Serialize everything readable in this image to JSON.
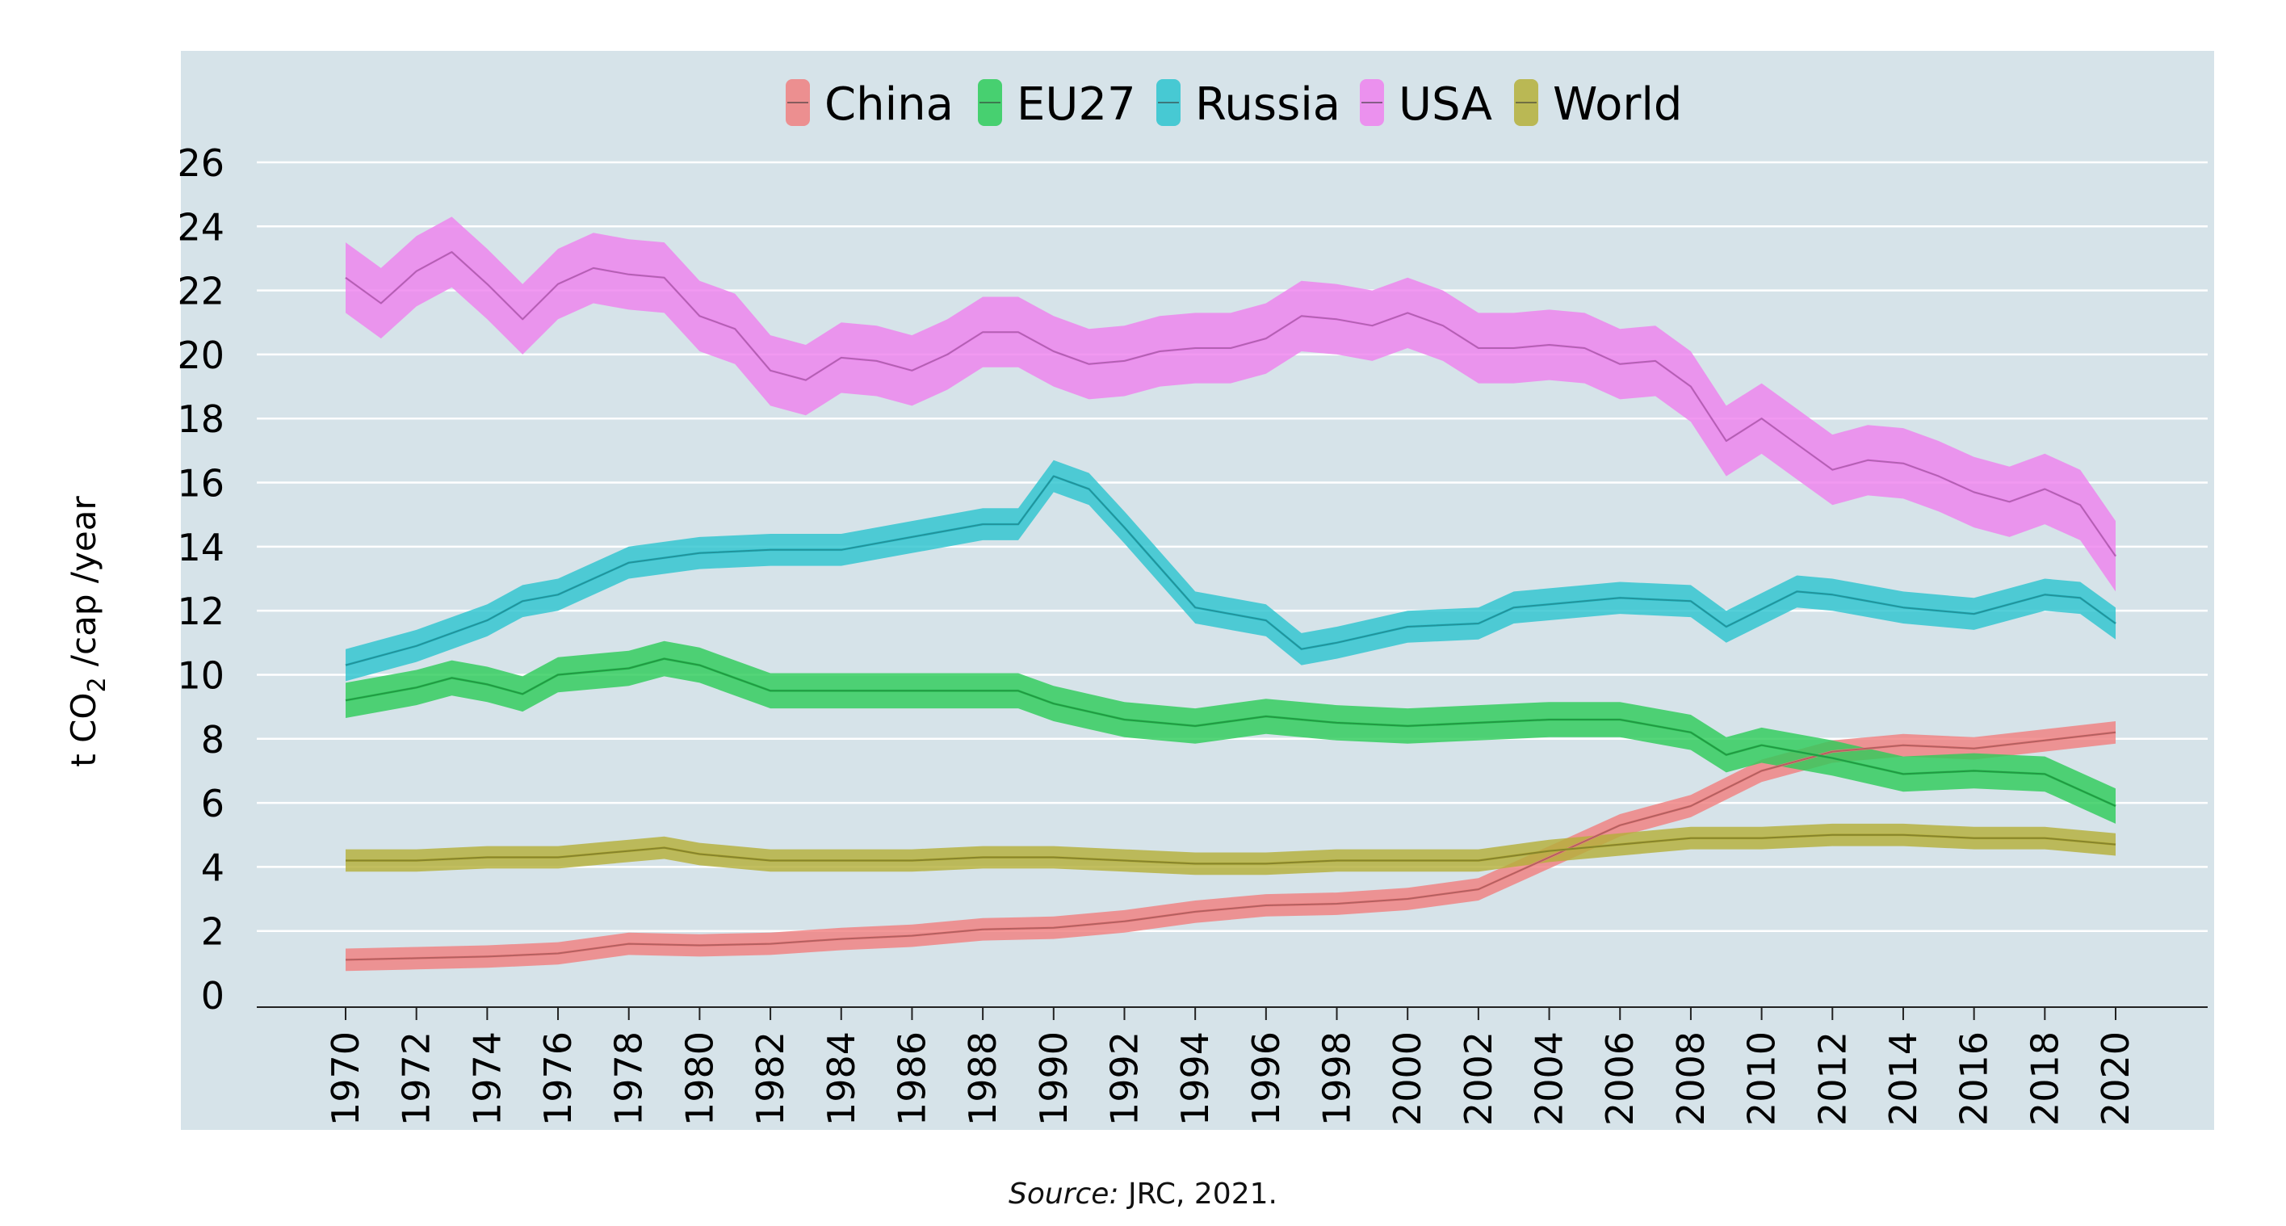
{
  "source": {
    "prefix": "Source:",
    "text": " JRC, 2021."
  },
  "chart_data": {
    "type": "line",
    "title": "",
    "xlabel": "",
    "ylabel": {
      "main": "t CO",
      "sub": "2",
      "rest": " /cap /year"
    },
    "xlim": [
      1970,
      2020
    ],
    "ylim": [
      0,
      26
    ],
    "yticks": [
      0,
      2,
      4,
      6,
      8,
      10,
      12,
      14,
      16,
      18,
      20,
      22,
      24,
      26
    ],
    "xticks": [
      1970,
      1972,
      1974,
      1976,
      1978,
      1980,
      1982,
      1984,
      1986,
      1988,
      1990,
      1992,
      1994,
      1996,
      1998,
      2000,
      2002,
      2004,
      2006,
      2008,
      2010,
      2012,
      2014,
      2016,
      2018,
      2020
    ],
    "grid": "horizontal",
    "legend_position": "top-center",
    "background": "#d6e3e9",
    "band_description": "shaded uncertainty band around each series",
    "series": [
      {
        "name": "China",
        "color": "#f08080",
        "x": [
          1970,
          1972,
          1974,
          1976,
          1978,
          1980,
          1982,
          1984,
          1986,
          1988,
          1990,
          1992,
          1994,
          1996,
          1998,
          2000,
          2002,
          2004,
          2006,
          2008,
          2010,
          2012,
          2014,
          2016,
          2018,
          2020
        ],
        "values": [
          1.1,
          1.15,
          1.2,
          1.3,
          1.6,
          1.55,
          1.6,
          1.75,
          1.85,
          2.05,
          2.1,
          2.3,
          2.6,
          2.8,
          2.85,
          3.0,
          3.3,
          4.3,
          5.3,
          5.9,
          7.0,
          7.6,
          7.8,
          7.7,
          7.95,
          8.2
        ],
        "band": 0.35
      },
      {
        "name": "EU27",
        "color": "#2ecc5a",
        "x": [
          1970,
          1972,
          1973,
          1974,
          1975,
          1976,
          1978,
          1979,
          1980,
          1982,
          1984,
          1986,
          1988,
          1989,
          1990,
          1992,
          1994,
          1996,
          1998,
          2000,
          2002,
          2004,
          2006,
          2008,
          2009,
          2010,
          2012,
          2014,
          2016,
          2018,
          2020
        ],
        "values": [
          9.2,
          9.6,
          9.9,
          9.7,
          9.4,
          10.0,
          10.2,
          10.5,
          10.3,
          9.5,
          9.5,
          9.5,
          9.5,
          9.5,
          9.1,
          8.6,
          8.4,
          8.7,
          8.5,
          8.4,
          8.5,
          8.6,
          8.6,
          8.2,
          7.5,
          7.8,
          7.4,
          6.9,
          7.0,
          6.9,
          5.9
        ],
        "band": 0.55
      },
      {
        "name": "Russia",
        "color": "#2ec4cf",
        "x": [
          1970,
          1972,
          1974,
          1975,
          1976,
          1978,
          1980,
          1982,
          1984,
          1986,
          1988,
          1989,
          1990,
          1991,
          1992,
          1994,
          1996,
          1997,
          1998,
          2000,
          2002,
          2003,
          2006,
          2008,
          2009,
          2011,
          2012,
          2014,
          2016,
          2018,
          2019,
          2020
        ],
        "values": [
          10.3,
          10.9,
          11.7,
          12.3,
          12.5,
          13.5,
          13.8,
          13.9,
          13.9,
          14.3,
          14.7,
          14.7,
          16.2,
          15.8,
          14.6,
          12.1,
          11.7,
          10.8,
          11.0,
          11.5,
          11.6,
          12.1,
          12.4,
          12.3,
          11.5,
          12.6,
          12.5,
          12.1,
          11.9,
          12.5,
          12.4,
          11.6
        ],
        "band": 0.5
      },
      {
        "name": "USA",
        "color": "#ee82ee",
        "x": [
          1970,
          1971,
          1972,
          1973,
          1974,
          1975,
          1976,
          1977,
          1978,
          1979,
          1980,
          1981,
          1982,
          1983,
          1984,
          1985,
          1986,
          1987,
          1988,
          1989,
          1990,
          1991,
          1992,
          1993,
          1994,
          1995,
          1996,
          1997,
          1998,
          1999,
          2000,
          2001,
          2002,
          2003,
          2004,
          2005,
          2006,
          2007,
          2008,
          2009,
          2010,
          2011,
          2012,
          2013,
          2014,
          2015,
          2016,
          2017,
          2018,
          2019,
          2020
        ],
        "values": [
          22.4,
          21.6,
          22.6,
          23.2,
          22.2,
          21.1,
          22.2,
          22.7,
          22.5,
          22.4,
          21.2,
          20.8,
          19.5,
          19.2,
          19.9,
          19.8,
          19.5,
          20.0,
          20.7,
          20.7,
          20.1,
          19.7,
          19.8,
          20.1,
          20.2,
          20.2,
          20.5,
          21.2,
          21.1,
          20.9,
          21.3,
          20.9,
          20.2,
          20.2,
          20.3,
          20.2,
          19.7,
          19.8,
          19.0,
          17.3,
          18.0,
          17.2,
          16.4,
          16.7,
          16.6,
          16.2,
          15.7,
          15.4,
          15.8,
          15.3,
          13.7
        ],
        "band": 1.1
      },
      {
        "name": "World",
        "color": "#b5b03a",
        "x": [
          1970,
          1972,
          1974,
          1976,
          1978,
          1979,
          1980,
          1982,
          1984,
          1986,
          1988,
          1990,
          1992,
          1994,
          1996,
          1998,
          2000,
          2002,
          2004,
          2006,
          2008,
          2010,
          2012,
          2014,
          2016,
          2018,
          2020
        ],
        "values": [
          4.2,
          4.2,
          4.3,
          4.3,
          4.5,
          4.6,
          4.4,
          4.2,
          4.2,
          4.2,
          4.3,
          4.3,
          4.2,
          4.1,
          4.1,
          4.2,
          4.2,
          4.2,
          4.5,
          4.7,
          4.9,
          4.9,
          5.0,
          5.0,
          4.9,
          4.9,
          4.7
        ],
        "band": 0.35
      }
    ]
  }
}
